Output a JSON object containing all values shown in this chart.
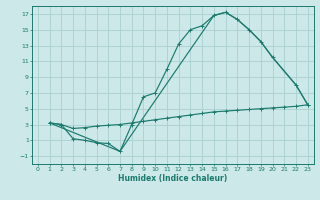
{
  "xlabel": "Humidex (Indice chaleur)",
  "bg_color": "#cce8e8",
  "grid_color": "#aacfcf",
  "line_color": "#1a7a6e",
  "xlim": [
    -0.5,
    23.5
  ],
  "ylim": [
    -2.0,
    18.0
  ],
  "xticks": [
    0,
    1,
    2,
    3,
    4,
    5,
    6,
    7,
    8,
    9,
    10,
    11,
    12,
    13,
    14,
    15,
    16,
    17,
    18,
    19,
    20,
    21,
    22,
    23
  ],
  "yticks": [
    -1,
    1,
    3,
    5,
    7,
    9,
    11,
    13,
    15,
    17
  ],
  "curve1_x": [
    1,
    2,
    3,
    4,
    5,
    6,
    7,
    8,
    9,
    10,
    11,
    12,
    13,
    14,
    15,
    16,
    17,
    18,
    19,
    20,
    22,
    23
  ],
  "curve1_y": [
    3.2,
    3.0,
    1.2,
    1.0,
    0.7,
    0.6,
    -0.4,
    3.0,
    6.5,
    7.0,
    10.0,
    13.2,
    15.0,
    15.5,
    16.8,
    17.2,
    16.3,
    15.0,
    13.5,
    11.5,
    8.0,
    5.5
  ],
  "curve2_x": [
    1,
    2,
    3,
    4,
    5,
    6,
    7,
    8,
    9,
    10,
    11,
    12,
    13,
    14,
    15,
    16,
    17,
    18,
    19,
    20,
    21,
    22,
    23
  ],
  "curve2_y": [
    3.2,
    3.0,
    2.5,
    2.6,
    2.8,
    2.9,
    3.0,
    3.2,
    3.4,
    3.6,
    3.8,
    4.0,
    4.2,
    4.4,
    4.6,
    4.7,
    4.8,
    4.9,
    5.0,
    5.1,
    5.2,
    5.3,
    5.5
  ],
  "curve3_x": [
    1,
    7,
    15,
    16,
    17,
    18,
    19,
    20,
    22,
    23
  ],
  "curve3_y": [
    3.2,
    -0.4,
    16.8,
    17.2,
    16.3,
    15.0,
    13.5,
    11.5,
    8.0,
    5.5
  ]
}
